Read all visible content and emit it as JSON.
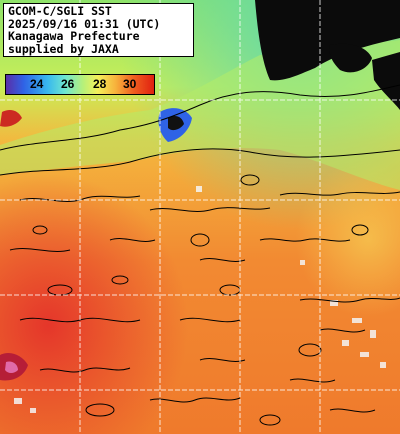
{
  "header": {
    "line1": "GCOM-C/SGLI SST",
    "line2": "2025/09/16 01:31 (UTC)",
    "line3": "Kanagawa Prefecture",
    "line4": "supplied by JAXA"
  },
  "legend": {
    "ticks": [
      "24",
      "26",
      "28",
      "30"
    ],
    "unit_range": [
      23,
      31
    ]
  },
  "colors": {
    "land": "#0a0a0a",
    "grid": "#ffffff",
    "contour": "#000000"
  }
}
